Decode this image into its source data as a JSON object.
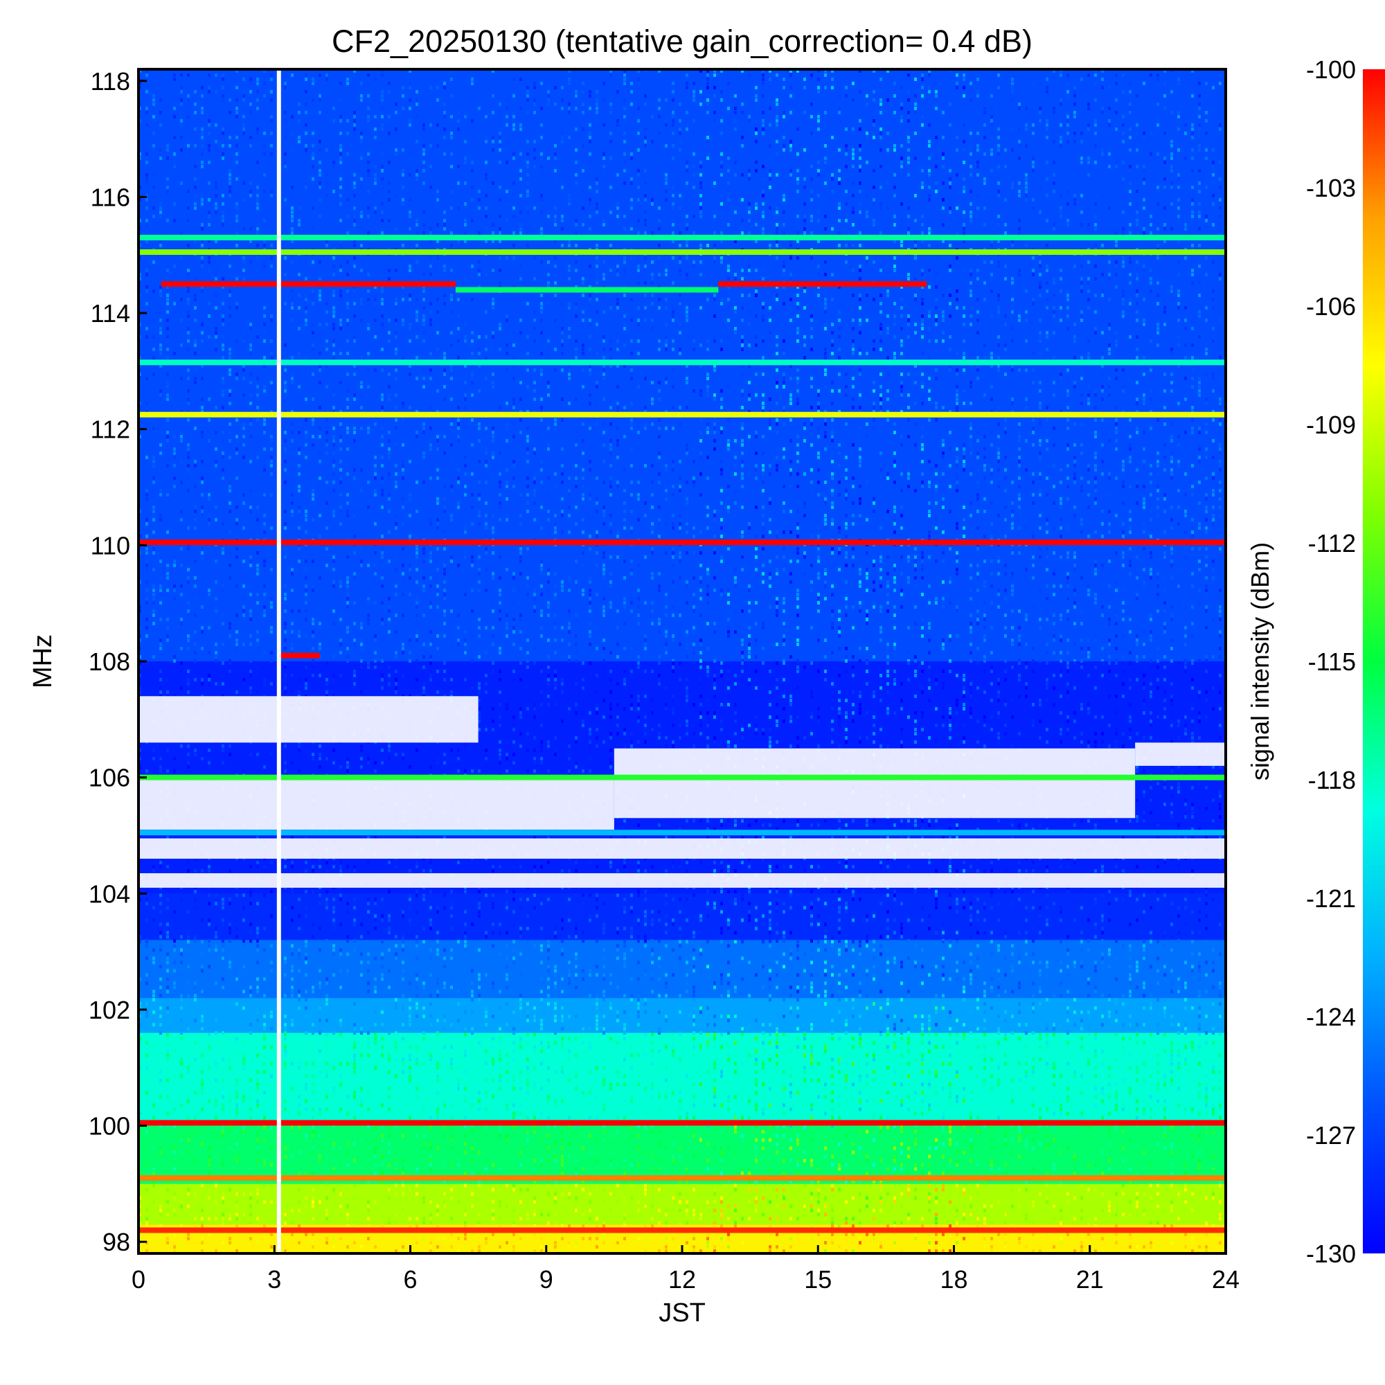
{
  "chart_data": {
    "type": "heatmap",
    "title": "CF2_20250130 (tentative gain_correction=  0.4 dB)",
    "xlabel": "JST",
    "ylabel": "MHz",
    "colorbar_label": "signal intensity (dBm)",
    "xlim": [
      0,
      24
    ],
    "ylim": [
      97.8,
      118.2
    ],
    "clim": [
      -130,
      -100
    ],
    "x_ticks": [
      0,
      3,
      6,
      9,
      12,
      15,
      18,
      21,
      24
    ],
    "y_ticks": [
      98,
      100,
      102,
      104,
      106,
      108,
      110,
      112,
      114,
      116,
      118
    ],
    "colorbar_ticks": [
      -100,
      -103,
      -106,
      -109,
      -112,
      -115,
      -118,
      -121,
      -124,
      -127,
      -130
    ],
    "colormap": [
      "#0000ff",
      "#0050ff",
      "#00b0ff",
      "#00ffe0",
      "#00ff40",
      "#80ff00",
      "#ffff00",
      "#ffa000",
      "#ff0000"
    ],
    "background_bands": [
      {
        "freq": [
          108.0,
          118.2
        ],
        "level": -126.5
      },
      {
        "freq": [
          104.0,
          108.0
        ],
        "level": -128.5
      },
      {
        "freq": [
          103.2,
          104.0
        ],
        "level": -128.0
      },
      {
        "freq": [
          102.2,
          103.2
        ],
        "level": -125.0
      },
      {
        "freq": [
          101.6,
          102.2
        ],
        "level": -123.0
      },
      {
        "freq": [
          100.0,
          101.6
        ],
        "level": -118.5
      },
      {
        "freq": [
          99.0,
          100.0
        ],
        "level": -116.0
      },
      {
        "freq": [
          98.3,
          99.0
        ],
        "level": -110.0
      },
      {
        "freq": [
          97.8,
          98.3
        ],
        "level": -107.0
      }
    ],
    "dropout_regions": [
      {
        "time": [
          0,
          7.5
        ],
        "freq": [
          106.6,
          107.4
        ]
      },
      {
        "time": [
          0,
          10.5
        ],
        "freq": [
          105.1,
          106.0
        ]
      },
      {
        "time": [
          0,
          24
        ],
        "freq": [
          104.6,
          104.95
        ]
      },
      {
        "time": [
          0,
          24
        ],
        "freq": [
          104.1,
          104.35
        ]
      },
      {
        "time": [
          10.5,
          22.0
        ],
        "freq": [
          105.3,
          106.5
        ]
      },
      {
        "time": [
          22.0,
          24
        ],
        "freq": [
          106.2,
          106.6
        ]
      }
    ],
    "time_gap": 3.1,
    "persistent_signals": [
      {
        "freq": 114.5,
        "time": [
          0.5,
          7.0
        ],
        "level": -100
      },
      {
        "freq": 114.5,
        "time": [
          12.8,
          17.4
        ],
        "level": -100
      },
      {
        "freq": 114.4,
        "time": [
          7.0,
          12.8
        ],
        "level": -116
      },
      {
        "freq": 115.3,
        "time": [
          0,
          24
        ],
        "level": -117
      },
      {
        "freq": 115.05,
        "time": [
          0,
          24
        ],
        "level": -111
      },
      {
        "freq": 113.15,
        "time": [
          0,
          24
        ],
        "level": -118
      },
      {
        "freq": 112.25,
        "time": [
          0,
          24
        ],
        "level": -108
      },
      {
        "freq": 110.05,
        "time": [
          0,
          24
        ],
        "level": -100
      },
      {
        "freq": 105.05,
        "time": [
          0,
          24
        ],
        "level": -122
      },
      {
        "freq": 106.0,
        "time": [
          0,
          24
        ],
        "level": -114
      },
      {
        "freq": 100.05,
        "time": [
          0,
          24
        ],
        "level": -100
      },
      {
        "freq": 99.1,
        "time": [
          0,
          24
        ],
        "level": -103
      },
      {
        "freq": 98.2,
        "time": [
          0,
          24
        ],
        "level": -101
      },
      {
        "freq": 108.1,
        "time": [
          3.1,
          4.0
        ],
        "level": -100
      }
    ]
  }
}
